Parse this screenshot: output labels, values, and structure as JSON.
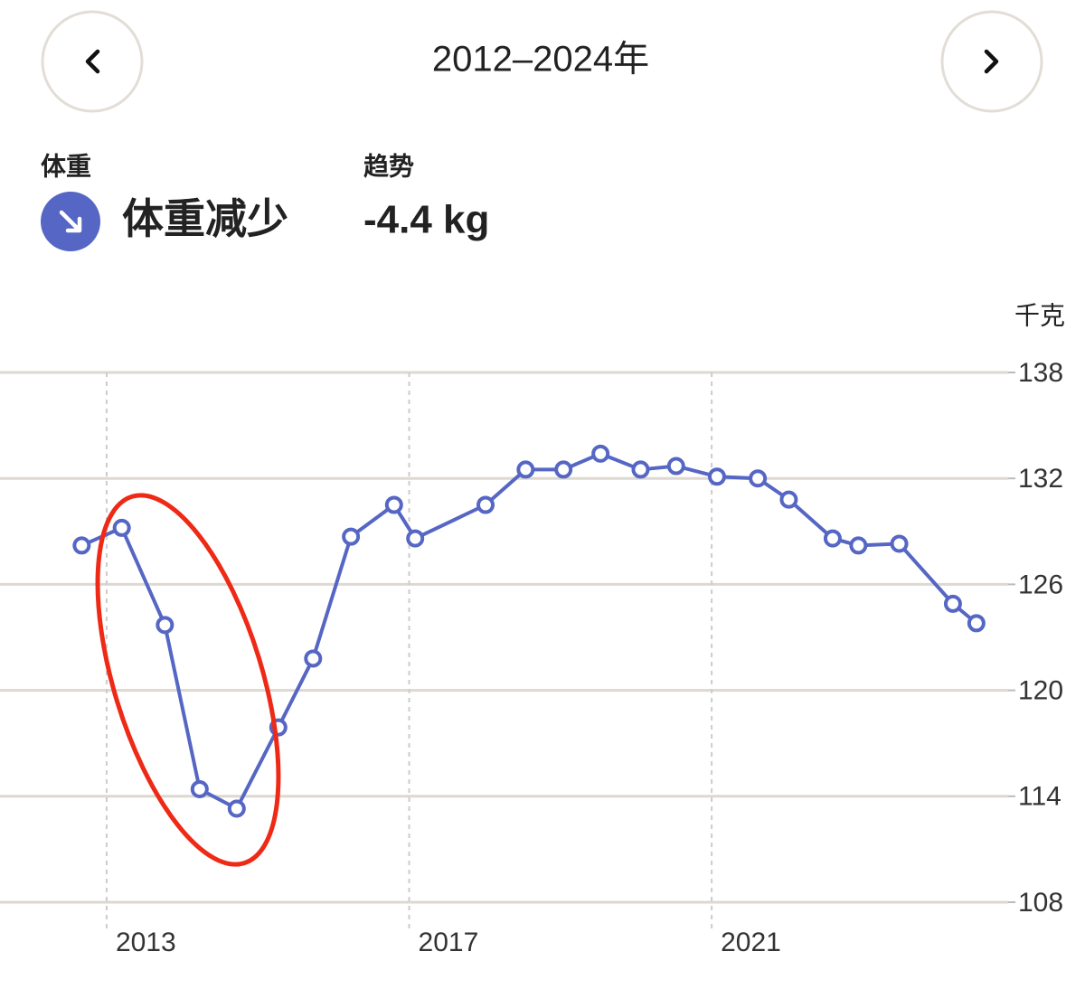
{
  "header": {
    "title": "2012–2024年"
  },
  "summary": {
    "metric_label": "体重",
    "metric_value": "体重减少",
    "trend_label": "趋势",
    "trend_value": "-4.4 kg"
  },
  "chart_data": {
    "type": "line",
    "y_unit": "千克",
    "x": [
      2012.67,
      2013.2,
      2013.77,
      2014.23,
      2014.72,
      2015.27,
      2015.73,
      2016.23,
      2016.8,
      2017.08,
      2018.01,
      2018.54,
      2019.04,
      2019.53,
      2020.06,
      2020.53,
      2021.07,
      2021.61,
      2022.02,
      2022.6,
      2022.94,
      2023.48,
      2024.19,
      2024.5
    ],
    "series": [
      {
        "color": "#5566c4",
        "values": [
          128.2,
          129.2,
          123.7,
          114.4,
          113.3,
          117.9,
          121.8,
          128.7,
          130.5,
          128.6,
          130.5,
          132.5,
          132.5,
          133.4,
          132.5,
          132.7,
          132.1,
          132.0,
          130.8,
          128.6,
          128.2,
          128.3,
          124.9,
          123.8
        ]
      }
    ],
    "xlim": [
      2011.59,
      2024.92
    ],
    "ylim": [
      108,
      138
    ],
    "xticks": [
      2013,
      2017,
      2021
    ],
    "yticks": [
      108,
      114,
      120,
      126,
      132,
      138
    ],
    "grid": true
  }
}
